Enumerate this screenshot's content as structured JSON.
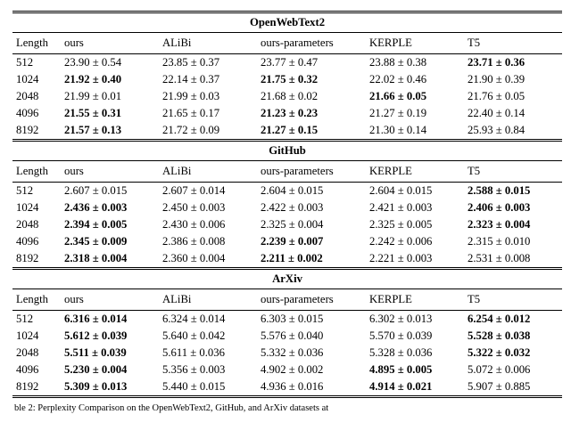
{
  "cols": [
    "Length",
    "ours",
    "ALiBi",
    "ours-parameters",
    "KERPLE",
    "T5"
  ],
  "pm": "±",
  "sections": [
    {
      "title": "OpenWebText2",
      "topBorder": "dbl-top",
      "rows": [
        {
          "len": "512",
          "cells": [
            {
              "v": "23.90",
              "e": "0.54",
              "b": false
            },
            {
              "v": "23.85",
              "e": "0.37",
              "b": false
            },
            {
              "v": "23.77",
              "e": "0.47",
              "b": false
            },
            {
              "v": "23.88",
              "e": "0.38",
              "b": false
            },
            {
              "v": "23.71",
              "e": "0.36",
              "b": true
            }
          ]
        },
        {
          "len": "1024",
          "cells": [
            {
              "v": "21.92",
              "e": "0.40",
              "b": true
            },
            {
              "v": "22.14",
              "e": "0.37",
              "b": false
            },
            {
              "v": "21.75",
              "e": "0.32",
              "b": true
            },
            {
              "v": "22.02",
              "e": "0.46",
              "b": false
            },
            {
              "v": "21.90",
              "e": "0.39",
              "b": false
            }
          ]
        },
        {
          "len": "2048",
          "cells": [
            {
              "v": "21.99",
              "e": "0.01",
              "b": false
            },
            {
              "v": "21.99",
              "e": "0.03",
              "b": false
            },
            {
              "v": "21.68",
              "e": "0.02",
              "b": false
            },
            {
              "v": "21.66",
              "e": "0.05",
              "b": true
            },
            {
              "v": "21.76",
              "e": "0.05",
              "b": false
            }
          ]
        },
        {
          "len": "4096",
          "cells": [
            {
              "v": "21.55",
              "e": "0.31",
              "b": true
            },
            {
              "v": "21.65",
              "e": "0.17",
              "b": false
            },
            {
              "v": "21.23",
              "e": "0.23",
              "b": true
            },
            {
              "v": "21.27",
              "e": "0.19",
              "b": false
            },
            {
              "v": "22.40",
              "e": "0.14",
              "b": false
            }
          ]
        },
        {
          "len": "8192",
          "cells": [
            {
              "v": "21.57",
              "e": "0.13",
              "b": true
            },
            {
              "v": "21.72",
              "e": "0.09",
              "b": false
            },
            {
              "v": "21.27",
              "e": "0.15",
              "b": true
            },
            {
              "v": "21.30",
              "e": "0.14",
              "b": false
            },
            {
              "v": "25.93",
              "e": "0.84",
              "b": false
            }
          ]
        }
      ]
    },
    {
      "title": "GitHub",
      "topBorder": "dbl-top",
      "rows": [
        {
          "len": "512",
          "cells": [
            {
              "v": "2.607",
              "e": "0.015",
              "b": false
            },
            {
              "v": "2.607",
              "e": "0.014",
              "b": false
            },
            {
              "v": "2.604",
              "e": "0.015",
              "b": false
            },
            {
              "v": "2.604",
              "e": "0.015",
              "b": false
            },
            {
              "v": "2.588",
              "e": "0.015",
              "b": true
            }
          ]
        },
        {
          "len": "1024",
          "cells": [
            {
              "v": "2.436",
              "e": "0.003",
              "b": true
            },
            {
              "v": "2.450",
              "e": "0.003",
              "b": false
            },
            {
              "v": "2.422",
              "e": "0.003",
              "b": false
            },
            {
              "v": "2.421",
              "e": "0.003",
              "b": false
            },
            {
              "v": "2.406",
              "e": "0.003",
              "b": true
            }
          ]
        },
        {
          "len": "2048",
          "cells": [
            {
              "v": "2.394",
              "e": "0.005",
              "b": true
            },
            {
              "v": "2.430",
              "e": "0.006",
              "b": false
            },
            {
              "v": "2.325",
              "e": "0.004",
              "b": false
            },
            {
              "v": "2.325",
              "e": "0.005",
              "b": false
            },
            {
              "v": "2.323",
              "e": "0.004",
              "b": true
            }
          ]
        },
        {
          "len": "4096",
          "cells": [
            {
              "v": "2.345",
              "e": "0.009",
              "b": true
            },
            {
              "v": "2.386",
              "e": "0.008",
              "b": false
            },
            {
              "v": "2.239",
              "e": "0.007",
              "b": true
            },
            {
              "v": "2.242",
              "e": "0.006",
              "b": false
            },
            {
              "v": "2.315",
              "e": "0.010",
              "b": false
            }
          ]
        },
        {
          "len": "8192",
          "cells": [
            {
              "v": "2.318",
              "e": "0.004",
              "b": true
            },
            {
              "v": "2.360",
              "e": "0.004",
              "b": false
            },
            {
              "v": "2.211",
              "e": "0.002",
              "b": true
            },
            {
              "v": "2.221",
              "e": "0.003",
              "b": false
            },
            {
              "v": "2.531",
              "e": "0.008",
              "b": false
            }
          ]
        }
      ]
    },
    {
      "title": "ArXiv",
      "topBorder": "dbl-top",
      "rows": [
        {
          "len": "512",
          "cells": [
            {
              "v": "6.316",
              "e": "0.014",
              "b": true
            },
            {
              "v": "6.324",
              "e": "0.014",
              "b": false
            },
            {
              "v": "6.303",
              "e": "0.015",
              "b": false
            },
            {
              "v": "6.302",
              "e": "0.013",
              "b": false
            },
            {
              "v": "6.254",
              "e": "0.012",
              "b": true
            }
          ]
        },
        {
          "len": "1024",
          "cells": [
            {
              "v": "5.612",
              "e": "0.039",
              "b": true
            },
            {
              "v": "5.640",
              "e": "0.042",
              "b": false
            },
            {
              "v": "5.576",
              "e": "0.040",
              "b": false
            },
            {
              "v": "5.570",
              "e": "0.039",
              "b": false
            },
            {
              "v": "5.528",
              "e": "0.038",
              "b": true
            }
          ]
        },
        {
          "len": "2048",
          "cells": [
            {
              "v": "5.511",
              "e": "0.039",
              "b": true
            },
            {
              "v": "5.611",
              "e": "0.036",
              "b": false
            },
            {
              "v": "5.332",
              "e": "0.036",
              "b": false
            },
            {
              "v": "5.328",
              "e": "0.036",
              "b": false
            },
            {
              "v": "5.322",
              "e": "0.032",
              "b": true
            }
          ]
        },
        {
          "len": "4096",
          "cells": [
            {
              "v": "5.230",
              "e": "0.004",
              "b": true
            },
            {
              "v": "5.356",
              "e": "0.003",
              "b": false
            },
            {
              "v": "4.902",
              "e": "0.002",
              "b": false
            },
            {
              "v": "4.895",
              "e": "0.005",
              "b": true
            },
            {
              "v": "5.072",
              "e": "0.006",
              "b": false
            }
          ]
        },
        {
          "len": "8192",
          "cells": [
            {
              "v": "5.309",
              "e": "0.013",
              "b": true
            },
            {
              "v": "5.440",
              "e": "0.015",
              "b": false
            },
            {
              "v": "4.936",
              "e": "0.016",
              "b": false
            },
            {
              "v": "4.914",
              "e": "0.021",
              "b": true
            },
            {
              "v": "5.907",
              "e": "0.885",
              "b": false
            }
          ]
        }
      ],
      "bottomBorder": "dbl-bot"
    }
  ],
  "caption_fragment": "ble 2: Perplexity Comparison on the OpenWebText2, GitHub, and ArXiv datasets at "
}
